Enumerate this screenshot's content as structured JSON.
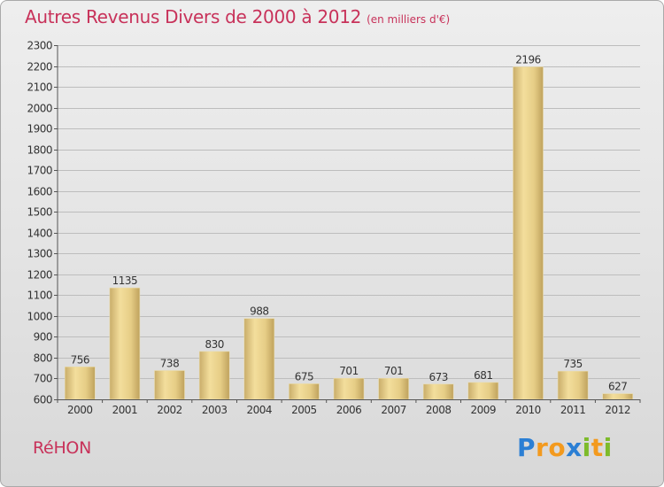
{
  "title": {
    "main": "Autres Revenus Divers de 2000 à 2012",
    "sub": "(en milliers d'€)"
  },
  "place": "RéHON",
  "logo": {
    "text": "Proxiti",
    "letters": [
      {
        "ch": "P",
        "color": "#2b7fd4"
      },
      {
        "ch": "r",
        "color": "#f39a1e"
      },
      {
        "ch": "o",
        "color": "#f39a1e"
      },
      {
        "ch": "x",
        "color": "#2b7fd4"
      },
      {
        "ch": "i",
        "color": "#7dbb2a"
      },
      {
        "ch": "t",
        "color": "#f39a1e"
      },
      {
        "ch": "i",
        "color": "#7dbb2a"
      }
    ]
  },
  "colors": {
    "title": "#c8325a",
    "bar_light": "#f2dc97",
    "bar_dark": "#c6a964",
    "grid": "#bdbdbd"
  },
  "chart_data": {
    "type": "bar",
    "categories": [
      "2000",
      "2001",
      "2002",
      "2003",
      "2004",
      "2005",
      "2006",
      "2007",
      "2008",
      "2009",
      "2010",
      "2011",
      "2012"
    ],
    "values": [
      756,
      1135,
      738,
      830,
      988,
      675,
      701,
      701,
      673,
      681,
      2196,
      735,
      627
    ],
    "ylim": [
      600,
      2300
    ],
    "yticks": [
      600,
      700,
      800,
      900,
      1000,
      1100,
      1200,
      1300,
      1400,
      1500,
      1600,
      1700,
      1800,
      1900,
      2000,
      2100,
      2200,
      2300
    ],
    "grid": true,
    "data_labels": true
  }
}
